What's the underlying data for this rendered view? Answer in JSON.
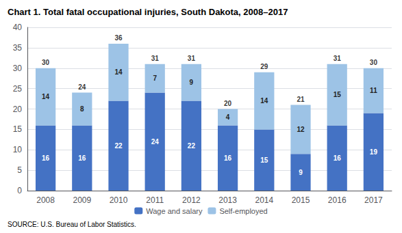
{
  "chart_data": {
    "type": "bar",
    "title": "Chart 1. Total fatal occupational injuries, South Dakota, 2008–2017",
    "categories": [
      "2008",
      "2009",
      "2010",
      "2011",
      "2012",
      "2013",
      "2014",
      "2015",
      "2016",
      "2017"
    ],
    "series": [
      {
        "name": "Wage and salary",
        "color": "#4472C4",
        "values": [
          16,
          16,
          22,
          24,
          22,
          16,
          15,
          9,
          16,
          19
        ]
      },
      {
        "name": "Self-employed",
        "color": "#9DC3E6",
        "values": [
          14,
          8,
          14,
          7,
          9,
          4,
          14,
          12,
          15,
          11
        ]
      }
    ],
    "totals": [
      30,
      24,
      36,
      31,
      31,
      20,
      29,
      21,
      31,
      30
    ],
    "stacked": true,
    "data_labels": true,
    "ylim": [
      0,
      40
    ],
    "yticks": [
      0,
      5,
      10,
      15,
      20,
      25,
      30,
      35,
      40
    ],
    "grid": true,
    "legend": "bottom",
    "source": "SOURCE: U.S. Bureau of Labor Statistics."
  }
}
